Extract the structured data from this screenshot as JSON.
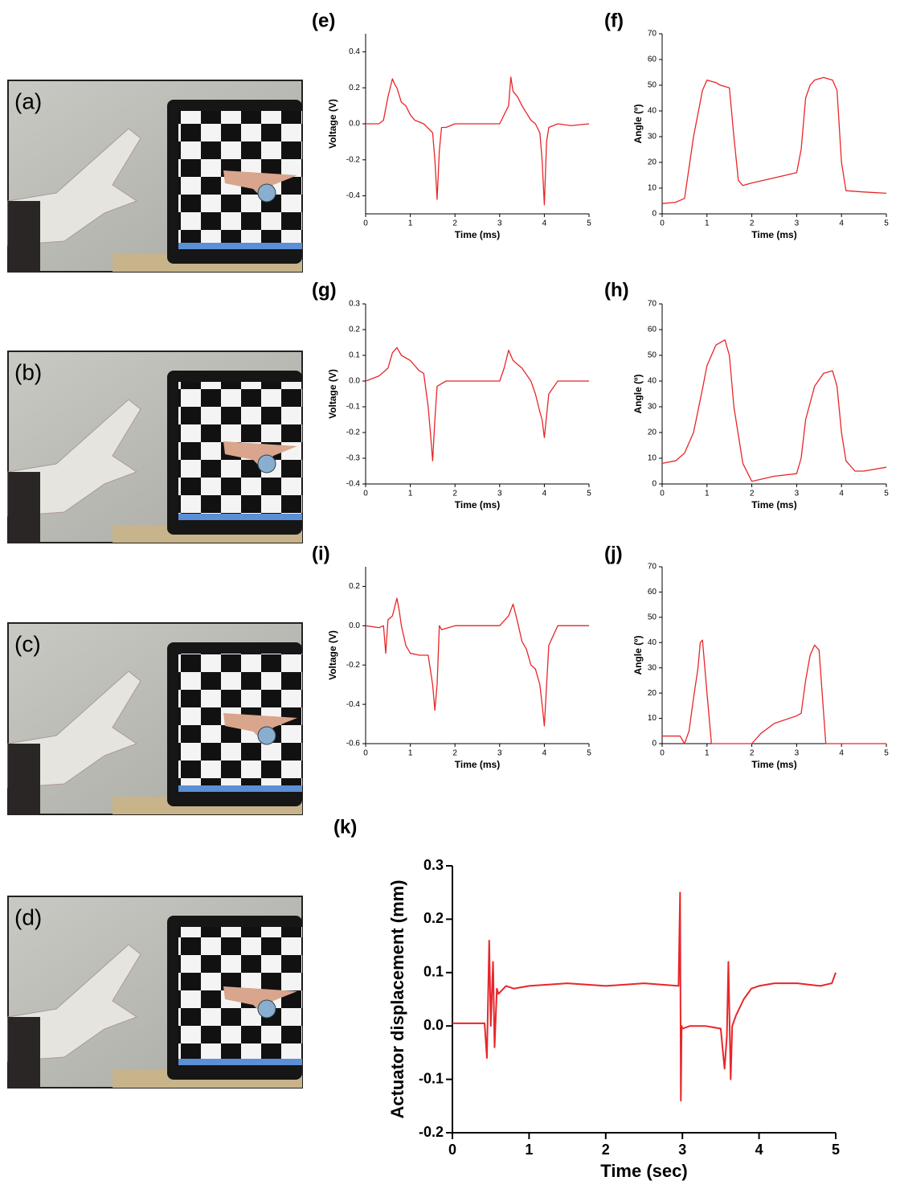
{
  "photos": [
    {
      "label": "(a)"
    },
    {
      "label": "(b)"
    },
    {
      "label": "(c)"
    },
    {
      "label": "(d)"
    }
  ],
  "chart_data": [
    {
      "type": "line",
      "title": "(e)",
      "x_label": "Time (ms)",
      "y_label": "Voltage (V)",
      "color": "#e8262a",
      "xlim": [
        0,
        5
      ],
      "xticks": [
        0,
        1,
        2,
        3,
        4,
        5
      ],
      "ylim": [
        -0.5,
        0.5
      ],
      "yticks": [
        -0.4,
        -0.2,
        {
          "value": 0,
          "label": "0.0"
        },
        0.2,
        0.4
      ],
      "x": [
        0,
        0.3,
        0.4,
        0.5,
        0.6,
        0.65,
        0.7,
        0.8,
        0.9,
        1.0,
        1.1,
        1.3,
        1.5,
        1.55,
        1.6,
        1.65,
        1.7,
        1.8,
        2.0,
        2.5,
        3.0,
        3.2,
        3.25,
        3.3,
        3.4,
        3.5,
        3.6,
        3.7,
        3.8,
        3.9,
        3.95,
        4.0,
        4.05,
        4.1,
        4.3,
        4.6,
        5.0
      ],
      "values": [
        0,
        0,
        0.02,
        0.15,
        0.25,
        0.22,
        0.2,
        0.12,
        0.1,
        0.05,
        0.02,
        0,
        -0.05,
        -0.2,
        -0.42,
        -0.15,
        -0.02,
        -0.02,
        0,
        0,
        0,
        0.1,
        0.26,
        0.18,
        0.15,
        0.1,
        0.06,
        0.02,
        0,
        -0.05,
        -0.2,
        -0.45,
        -0.1,
        -0.02,
        0,
        -0.01,
        0
      ]
    },
    {
      "type": "line",
      "title": "(f)",
      "x_label": "Time (ms)",
      "y_label": "Angle (º)",
      "color": "#e8262a",
      "xlim": [
        0,
        5
      ],
      "xticks": [
        0,
        1,
        2,
        3,
        4,
        5
      ],
      "ylim": [
        0,
        70
      ],
      "yticks": [
        0,
        10,
        20,
        30,
        40,
        50,
        60,
        70
      ],
      "x": [
        0,
        0.3,
        0.5,
        0.7,
        0.9,
        1.0,
        1.2,
        1.3,
        1.5,
        1.6,
        1.7,
        1.8,
        2.0,
        2.5,
        3.0,
        3.1,
        3.2,
        3.3,
        3.4,
        3.6,
        3.8,
        3.9,
        4.0,
        4.1,
        4.5,
        5.0
      ],
      "values": [
        4,
        4.5,
        6,
        30,
        48,
        52,
        51,
        50,
        49,
        30,
        13,
        11,
        12,
        14,
        16,
        25,
        45,
        50,
        52,
        53,
        52,
        48,
        20,
        9,
        8.5,
        8
      ]
    },
    {
      "type": "line",
      "title": "(g)",
      "x_label": "Time (ms)",
      "y_label": "Voltage (V)",
      "color": "#e8262a",
      "xlim": [
        0,
        5
      ],
      "xticks": [
        0,
        1,
        2,
        3,
        4,
        5
      ],
      "ylim": [
        -0.4,
        0.3
      ],
      "yticks": [
        -0.4,
        -0.3,
        -0.2,
        -0.1,
        {
          "value": 0,
          "label": "0.0"
        },
        0.1,
        0.2,
        0.3
      ],
      "x": [
        0,
        0.3,
        0.5,
        0.6,
        0.7,
        0.8,
        1.0,
        1.2,
        1.3,
        1.4,
        1.45,
        1.5,
        1.55,
        1.6,
        1.8,
        2.5,
        3.0,
        3.1,
        3.2,
        3.3,
        3.5,
        3.7,
        3.8,
        3.9,
        3.95,
        4.0,
        4.1,
        4.3,
        5.0
      ],
      "values": [
        0,
        0.02,
        0.05,
        0.11,
        0.13,
        0.1,
        0.08,
        0.04,
        0.03,
        -0.1,
        -0.2,
        -0.31,
        -0.15,
        -0.02,
        0,
        0,
        0,
        0.05,
        0.12,
        0.08,
        0.05,
        0,
        -0.05,
        -0.12,
        -0.15,
        -0.22,
        -0.05,
        0,
        0
      ]
    },
    {
      "type": "line",
      "title": "(h)",
      "x_label": "Time (ms)",
      "y_label": "Angle (º)",
      "color": "#e8262a",
      "xlim": [
        0,
        5
      ],
      "xticks": [
        0,
        1,
        2,
        3,
        4,
        5
      ],
      "ylim": [
        0,
        70
      ],
      "yticks": [
        0,
        10,
        20,
        30,
        40,
        50,
        60,
        70
      ],
      "x": [
        0,
        0.3,
        0.5,
        0.7,
        0.9,
        1.0,
        1.2,
        1.4,
        1.5,
        1.6,
        1.8,
        2.0,
        2.5,
        3.0,
        3.1,
        3.2,
        3.4,
        3.6,
        3.8,
        3.9,
        4.0,
        4.1,
        4.3,
        4.5,
        5.0
      ],
      "values": [
        8,
        9,
        12,
        20,
        37,
        46,
        54,
        56,
        50,
        30,
        8,
        1,
        3,
        4,
        10,
        25,
        38,
        43,
        44,
        38,
        20,
        9,
        5,
        5,
        6.5
      ]
    },
    {
      "type": "line",
      "title": "(i)",
      "x_label": "Time (ms)",
      "y_label": "Voltage (V)",
      "color": "#e8262a",
      "xlim": [
        0,
        5
      ],
      "xticks": [
        0,
        1,
        2,
        3,
        4,
        5
      ],
      "ylim": [
        -0.6,
        0.3
      ],
      "yticks": [
        -0.6,
        -0.4,
        -0.2,
        {
          "value": 0,
          "label": "0.0"
        },
        0.2
      ],
      "x": [
        0,
        0.3,
        0.4,
        0.45,
        0.5,
        0.6,
        0.7,
        0.75,
        0.8,
        0.9,
        1.0,
        1.2,
        1.4,
        1.5,
        1.55,
        1.6,
        1.65,
        1.7,
        2.0,
        2.5,
        3.0,
        3.2,
        3.3,
        3.4,
        3.5,
        3.6,
        3.7,
        3.8,
        3.9,
        3.95,
        4.0,
        4.1,
        4.3,
        5.0
      ],
      "values": [
        0,
        -0.01,
        0,
        -0.14,
        0.03,
        0.05,
        0.14,
        0.08,
        0,
        -0.1,
        -0.14,
        -0.15,
        -0.15,
        -0.3,
        -0.43,
        -0.3,
        0,
        -0.02,
        0,
        0,
        0,
        0.05,
        0.11,
        0.02,
        -0.08,
        -0.12,
        -0.2,
        -0.22,
        -0.3,
        -0.4,
        -0.51,
        -0.1,
        0,
        0
      ]
    },
    {
      "type": "line",
      "title": "(j)",
      "x_label": "Time (ms)",
      "y_label": "Angle (º)",
      "color": "#e8262a",
      "xlim": [
        0,
        5
      ],
      "xticks": [
        0,
        1,
        2,
        3,
        4,
        5
      ],
      "ylim": [
        0,
        70
      ],
      "yticks": [
        0,
        10,
        20,
        30,
        40,
        50,
        60,
        70
      ],
      "x": [
        0,
        0.4,
        0.5,
        0.6,
        0.7,
        0.8,
        0.85,
        0.9,
        1.0,
        1.1,
        2.0,
        2.2,
        2.5,
        3.0,
        3.1,
        3.2,
        3.3,
        3.4,
        3.5,
        3.65,
        4.5,
        5.0
      ],
      "values": [
        3,
        3,
        0,
        5,
        18,
        30,
        40,
        41,
        20,
        0,
        0,
        4,
        8,
        11,
        12,
        25,
        35,
        39,
        37,
        0,
        0,
        0
      ]
    },
    {
      "type": "line",
      "title": "(k)",
      "x_label": "Time (sec)",
      "y_label": "Actuator displacement (mm)",
      "color": "#e8262a",
      "xlim": [
        0,
        5
      ],
      "xticks": [
        0,
        1,
        2,
        3,
        4,
        5
      ],
      "ylim": [
        -0.2,
        0.3
      ],
      "yticks": [
        -0.2,
        -0.1,
        {
          "value": 0,
          "label": "0.0"
        },
        0.1,
        0.2,
        0.3
      ],
      "x": [
        0,
        0.3,
        0.42,
        0.45,
        0.48,
        0.5,
        0.53,
        0.55,
        0.58,
        0.6,
        0.7,
        0.8,
        1.0,
        1.5,
        2.0,
        2.5,
        2.95,
        2.97,
        2.98,
        2.99,
        3.0,
        3.1,
        3.3,
        3.5,
        3.55,
        3.58,
        3.6,
        3.63,
        3.65,
        3.7,
        3.8,
        3.9,
        4.0,
        4.2,
        4.5,
        4.8,
        4.95,
        5.0
      ],
      "values": [
        0.005,
        0.005,
        0.005,
        -0.06,
        0.16,
        0.0,
        0.12,
        -0.04,
        0.07,
        0.06,
        0.075,
        0.07,
        0.075,
        0.08,
        0.075,
        0.08,
        0.075,
        0.25,
        -0.14,
        0.0,
        -0.005,
        0,
        0,
        -0.005,
        -0.08,
        -0.02,
        0.12,
        -0.1,
        0.0,
        0.02,
        0.05,
        0.07,
        0.075,
        0.08,
        0.08,
        0.075,
        0.08,
        0.1
      ]
    }
  ]
}
